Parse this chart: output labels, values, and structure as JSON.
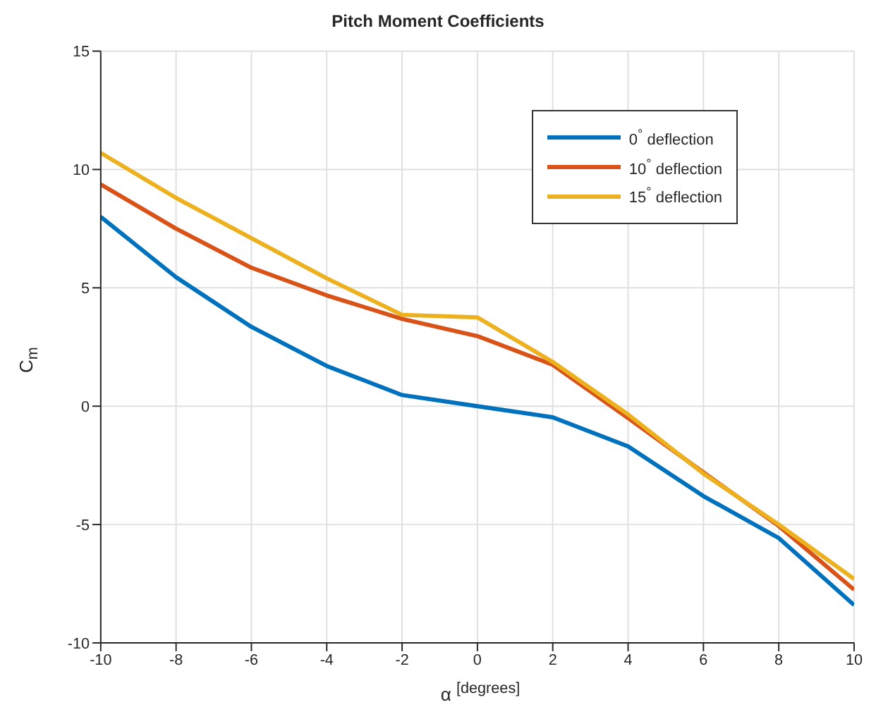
{
  "chart_data": {
    "type": "line",
    "title": "Pitch Moment Coefficients",
    "xlabel": "α $^{[degrees]}$",
    "ylabel": "C$_{m}$",
    "x": [
      -10,
      -8,
      -6,
      -4,
      -2,
      0,
      2,
      4,
      6,
      8,
      10
    ],
    "series": [
      {
        "name": "0$^{°}$ deflection",
        "color": "#0072bd",
        "values": [
          8.0,
          5.45,
          3.35,
          1.7,
          0.47,
          0,
          -0.47,
          -1.7,
          -3.8,
          -5.57,
          -8.4
        ]
      },
      {
        "name": "10$^{°}$ deflection",
        "color": "#d95319",
        "values": [
          9.37,
          7.5,
          5.85,
          4.68,
          3.69,
          2.96,
          1.75,
          -0.5,
          -2.8,
          -5.06,
          -7.75
        ]
      },
      {
        "name": "15$^{°}$ deflection",
        "color": "#edb120",
        "values": [
          10.7,
          8.8,
          7.1,
          5.4,
          3.86,
          3.75,
          1.87,
          -0.35,
          -2.85,
          -5.0,
          -7.3
        ]
      }
    ],
    "xlim": [
      -10,
      10
    ],
    "xticks": [
      -10,
      -8,
      -6,
      -4,
      -2,
      0,
      2,
      4,
      6,
      8,
      10
    ],
    "ylim": [
      -10,
      15
    ],
    "yticks": [
      -10,
      -5,
      0,
      5,
      10,
      15
    ],
    "grid": true,
    "legend": "top right",
    "marker": "none",
    "line_style": "solid"
  }
}
